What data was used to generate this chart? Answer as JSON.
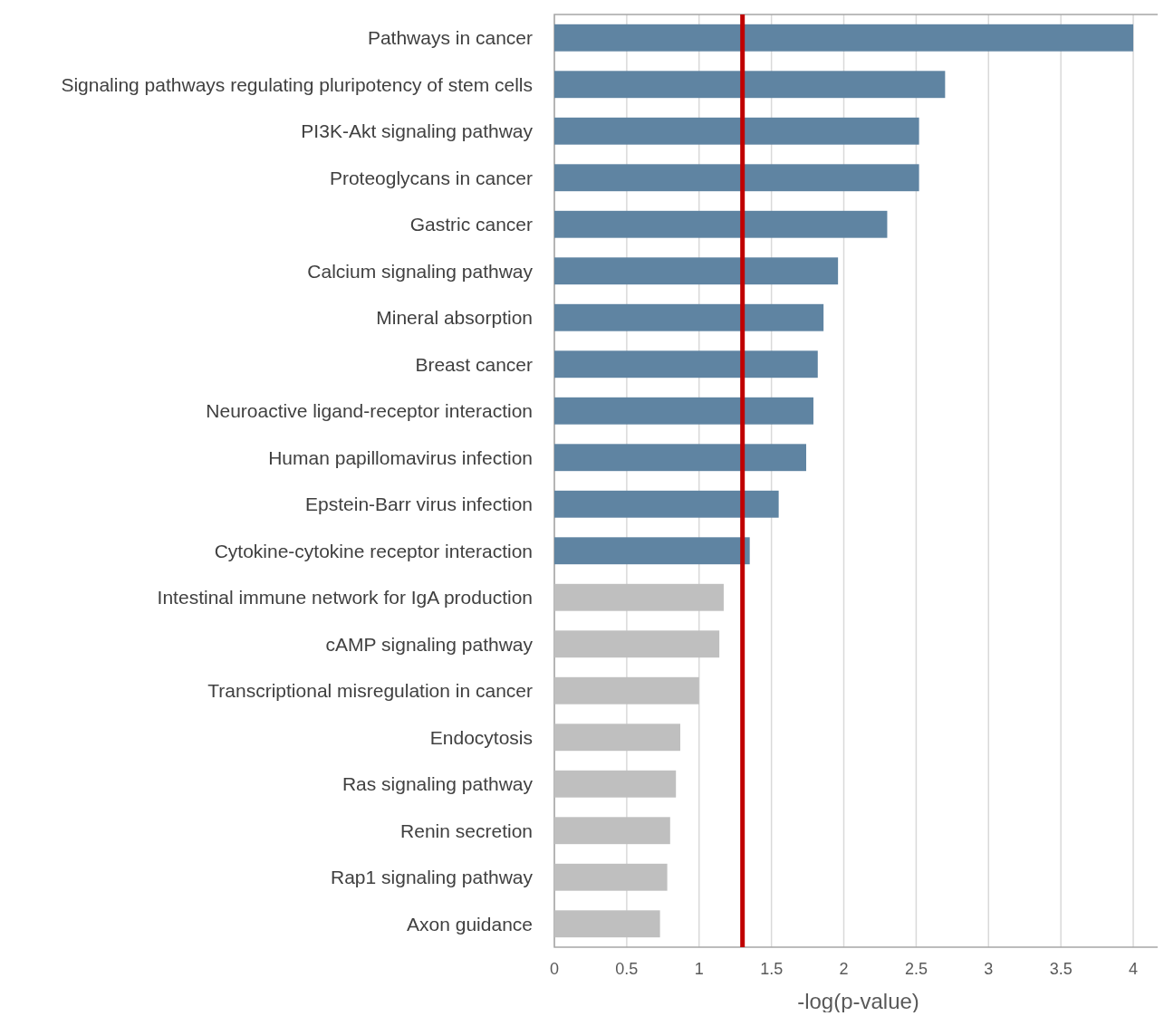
{
  "chart_data": {
    "type": "bar",
    "orientation": "horizontal",
    "xlabel": "-log(p-value)",
    "categories": [
      "Pathways in cancer",
      "Signaling pathways regulating pluripotency of stem cells",
      "PI3K-Akt signaling pathway",
      "Proteoglycans in cancer",
      "Gastric cancer",
      "Calcium signaling pathway",
      "Mineral absorption",
      "Breast cancer",
      "Neuroactive ligand-receptor interaction",
      "Human papillomavirus infection",
      "Epstein-Barr virus infection",
      "Cytokine-cytokine receptor interaction",
      "Intestinal immune network for IgA production",
      "cAMP signaling pathway",
      "Transcriptional misregulation in cancer",
      "Endocytosis",
      "Ras signaling pathway",
      "Renin secretion",
      "Rap1 signaling pathway",
      "Axon guidance"
    ],
    "values": [
      4.0,
      2.7,
      2.52,
      2.52,
      2.3,
      1.96,
      1.86,
      1.82,
      1.79,
      1.74,
      1.55,
      1.35,
      1.17,
      1.14,
      1.0,
      0.87,
      0.84,
      0.8,
      0.78,
      0.73
    ],
    "colors": [
      "#5f84a2",
      "#5f84a2",
      "#5f84a2",
      "#5f84a2",
      "#5f84a2",
      "#5f84a2",
      "#5f84a2",
      "#5f84a2",
      "#5f84a2",
      "#5f84a2",
      "#5f84a2",
      "#5f84a2",
      "#bfbfbf",
      "#bfbfbf",
      "#bfbfbf",
      "#bfbfbf",
      "#bfbfbf",
      "#bfbfbf",
      "#bfbfbf",
      "#bfbfbf"
    ],
    "xlim": [
      0,
      4.2
    ],
    "xticks": [
      0,
      0.5,
      1,
      1.5,
      2,
      2.5,
      3,
      3.5,
      4
    ],
    "grid": "x",
    "ref_lines": [
      {
        "axis": "x",
        "value": 1.3,
        "color": "#c00000"
      }
    ]
  }
}
